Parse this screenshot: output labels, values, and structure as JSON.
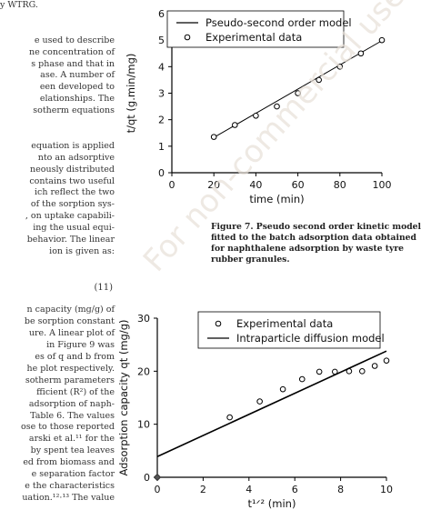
{
  "left_column": {
    "lines": [
      "y WTRG.",
      "",
      "",
      "e used to describe",
      "ne concentration of",
      "s phase and that in",
      "ase. A number of",
      "een developed to",
      "elationships.  The",
      "sotherm equations",
      "",
      "",
      "equation is applied",
      "nto an adsorptive",
      "neously distributed",
      "contains two useful",
      "ich reflect the two",
      "of the sorption sys-",
      ", on uptake capabili-",
      "ing the usual equi-",
      "behavior. The linear",
      "ion is given as:",
      "",
      "",
      "",
      "",
      "n capacity (mg/g) of",
      "be sorption constant",
      "ure. A linear plot of",
      "  in Figure 9 was",
      "es of q  and b from",
      "he plot respectively.",
      "sotherm parameters",
      "fficient (R²) of the",
      "adsorption of naph-",
      "Table 6. The values",
      "ose to those reported",
      "arski et al.¹¹ for the",
      "by spent tea leaves",
      "ed from biomass and",
      "e separation factor",
      "e the characteristics",
      "uation.¹²·¹³ The value"
    ],
    "equation_number": "(11)"
  },
  "chart_data": [
    {
      "type": "scatter",
      "title": "",
      "xlabel": "time (min)",
      "ylabel": "t/qt (g.min/mg)",
      "xlim": [
        0,
        100
      ],
      "ylim": [
        0,
        6
      ],
      "xticks": [
        "0",
        "20",
        "40",
        "60",
        "80",
        "100"
      ],
      "yticks": [
        "0",
        "1",
        "2",
        "3",
        "4",
        "5",
        "6"
      ],
      "grid": false,
      "legend_position": "top-center",
      "series": [
        {
          "name": "Pseudo-second order model",
          "kind": "line",
          "x": [
            20,
            100
          ],
          "y": [
            1.33,
            4.98
          ]
        },
        {
          "name": "Experimental data",
          "kind": "markers",
          "x": [
            20,
            30,
            40,
            50,
            60,
            70,
            80,
            90,
            100
          ],
          "y": [
            1.35,
            1.8,
            2.15,
            2.5,
            3.0,
            3.5,
            4.0,
            4.5,
            5.0
          ]
        }
      ]
    },
    {
      "type": "scatter",
      "title": "",
      "xlabel": "t¹ᐟ² (min)",
      "ylabel": "Adsorption capacity qt (mg/g)",
      "xlim": [
        0,
        10
      ],
      "ylim": [
        0,
        30
      ],
      "xticks": [
        "0",
        "2",
        "4",
        "6",
        "8",
        "10"
      ],
      "yticks": [
        "0",
        "10",
        "20",
        "30"
      ],
      "grid": false,
      "legend_position": "top-center",
      "series": [
        {
          "name": "Experimental data",
          "kind": "markers",
          "x": [
            3.16,
            4.47,
            5.48,
            6.32,
            7.07,
            7.75,
            8.37,
            8.94,
            9.49,
            10.0
          ],
          "y": [
            11.3,
            14.3,
            16.6,
            18.5,
            19.9,
            19.9,
            20.0,
            20.0,
            21.0,
            22.0
          ]
        },
        {
          "name": "Intraparticle diffusion model",
          "kind": "line",
          "x": [
            0,
            10
          ],
          "y": [
            3.9,
            23.8
          ]
        }
      ],
      "extra_points": [
        {
          "x": 0,
          "y": 0,
          "marker": "diamond"
        }
      ]
    }
  ],
  "figure7_caption": "Figure 7. Pseudo second order kinetic model fitted to the batch adsorption data obtained for naphthalene adsorption by waste tyre rubber granules.",
  "watermark": "For non-commercial use only"
}
